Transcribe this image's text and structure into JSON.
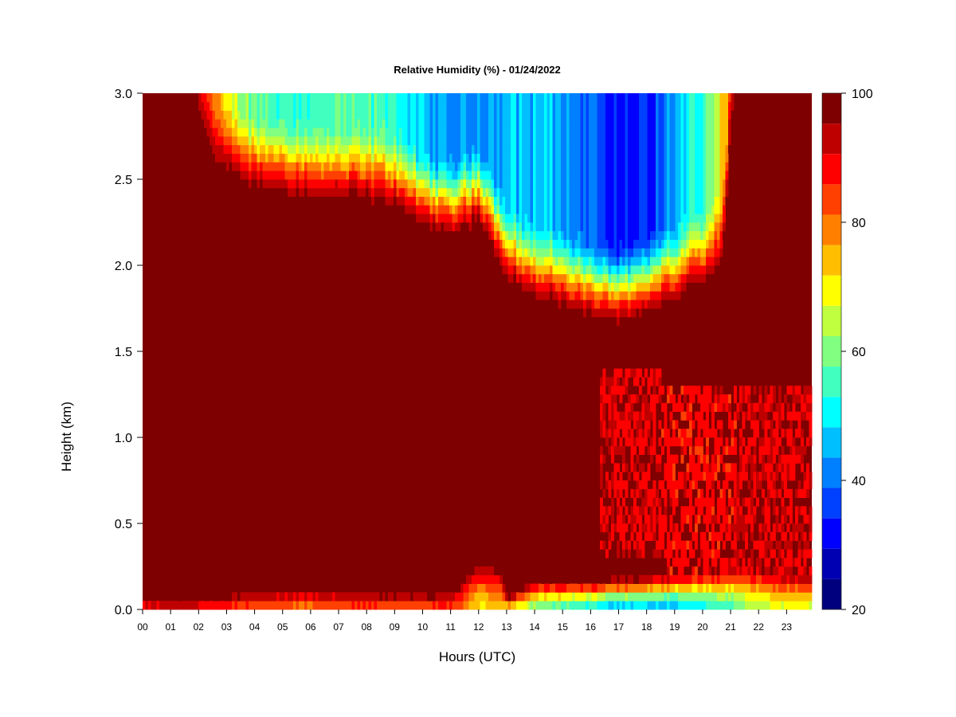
{
  "chart_data": {
    "type": "heatmap",
    "title": "Relative Humidity (%) - 01/24/2022",
    "xlabel": "Hours (UTC)",
    "ylabel": "Height (km)",
    "x_ticks": [
      "00",
      "01",
      "02",
      "03",
      "04",
      "05",
      "06",
      "07",
      "08",
      "09",
      "10",
      "11",
      "12",
      "13",
      "14",
      "15",
      "16",
      "17",
      "18",
      "19",
      "20",
      "21",
      "22",
      "23"
    ],
    "y_ticks": [
      "0.0",
      "0.5",
      "1.0",
      "1.5",
      "2.0",
      "2.5",
      "3.0"
    ],
    "xlim": [
      0,
      23.9
    ],
    "ylim": [
      0,
      3.0
    ],
    "colorbar": {
      "min": 20,
      "max": 100,
      "tick_labels": [
        "20",
        "40",
        "60",
        "80",
        "100"
      ],
      "colors": [
        "#00007f",
        "#0000b2",
        "#0000ff",
        "#0040ff",
        "#0080ff",
        "#00bfff",
        "#00ffff",
        "#40ffbf",
        "#80ff80",
        "#bfff40",
        "#ffff00",
        "#ffbf00",
        "#ff8000",
        "#ff4000",
        "#ff0000",
        "#bf0000",
        "#7f0000"
      ]
    },
    "features": {
      "upper_dry_boundary_km": [
        [
          0,
          3.0
        ],
        [
          1.5,
          3.0
        ],
        [
          2.5,
          2.5
        ],
        [
          3,
          2.42
        ],
        [
          4,
          2.35
        ],
        [
          5,
          2.35
        ],
        [
          6,
          2.3
        ],
        [
          7,
          2.3
        ],
        [
          8,
          2.3
        ],
        [
          9,
          2.25
        ],
        [
          10,
          2.15
        ],
        [
          11,
          2.1
        ],
        [
          12,
          2.18
        ],
        [
          13,
          1.85
        ],
        [
          14,
          1.72
        ],
        [
          15,
          1.68
        ],
        [
          16,
          1.62
        ],
        [
          17,
          1.6
        ],
        [
          18,
          1.65
        ],
        [
          19,
          1.72
        ],
        [
          20,
          1.8
        ],
        [
          20.7,
          1.9
        ],
        [
          21.0,
          2.6
        ],
        [
          21.2,
          3.0
        ],
        [
          23.9,
          3.0
        ]
      ],
      "upper_min_rh_pct": [
        [
          0,
          100
        ],
        [
          1.5,
          95
        ],
        [
          2.5,
          78
        ],
        [
          3,
          68
        ],
        [
          4,
          58
        ],
        [
          5,
          54
        ],
        [
          6,
          55
        ],
        [
          7,
          55
        ],
        [
          8,
          55
        ],
        [
          9,
          55
        ],
        [
          10,
          45
        ],
        [
          11,
          42
        ],
        [
          12,
          44
        ],
        [
          13,
          46
        ],
        [
          14,
          47
        ],
        [
          15,
          45
        ],
        [
          16,
          38
        ],
        [
          17,
          32
        ],
        [
          18,
          33
        ],
        [
          19,
          45
        ],
        [
          20,
          55
        ],
        [
          20.7,
          70
        ],
        [
          21.1,
          90
        ],
        [
          21.3,
          100
        ],
        [
          23.9,
          100
        ]
      ],
      "surface_min_rh_pct": [
        [
          0,
          88
        ],
        [
          1,
          92
        ],
        [
          2,
          90
        ],
        [
          3,
          85
        ],
        [
          4,
          83
        ],
        [
          5,
          82
        ],
        [
          6,
          80
        ],
        [
          7,
          82
        ],
        [
          8,
          84
        ],
        [
          9,
          82
        ],
        [
          10,
          82
        ],
        [
          11,
          85
        ],
        [
          12,
          72
        ],
        [
          12.8,
          75
        ],
        [
          13.3,
          70
        ],
        [
          14,
          60
        ],
        [
          15,
          56
        ],
        [
          16,
          50
        ],
        [
          17,
          46
        ],
        [
          18,
          47
        ],
        [
          19,
          46
        ],
        [
          20,
          52
        ],
        [
          21,
          56
        ],
        [
          22,
          64
        ],
        [
          23,
          68
        ],
        [
          23.9,
          68
        ]
      ],
      "surface_layer_top_km": [
        [
          0,
          0.1
        ],
        [
          3,
          0.12
        ],
        [
          6,
          0.15
        ],
        [
          9,
          0.12
        ],
        [
          11,
          0.12
        ],
        [
          12,
          0.35
        ],
        [
          12.8,
          0.3
        ],
        [
          13,
          0.1
        ],
        [
          14,
          0.2
        ],
        [
          16,
          0.2
        ],
        [
          18,
          0.22
        ],
        [
          20,
          0.28
        ],
        [
          22,
          0.3
        ],
        [
          23.9,
          0.25
        ]
      ],
      "midlevel_red_patches": [
        {
          "hours": [
            16.3,
            18.5
          ],
          "height_km": [
            0.3,
            1.4
          ],
          "rh_pct": 90
        },
        {
          "hours": [
            18.5,
            21.2
          ],
          "height_km": [
            0.2,
            1.3
          ],
          "rh_pct": 88
        },
        {
          "hours": [
            21.2,
            23.9
          ],
          "height_km": [
            0.2,
            1.3
          ],
          "rh_pct": 90
        }
      ]
    }
  }
}
